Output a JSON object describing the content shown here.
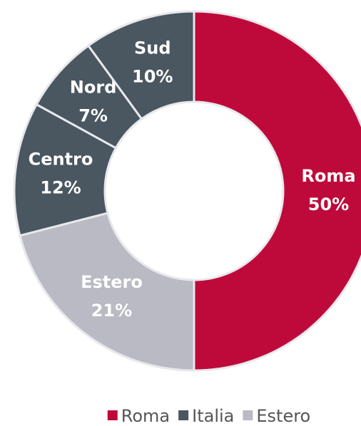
{
  "chart_data": {
    "type": "donut",
    "categories": [
      "Roma",
      "Estero",
      "Centro",
      "Nord",
      "Sud"
    ],
    "values": [
      50,
      21,
      12,
      7,
      10
    ],
    "value_labels": [
      "50%",
      "21%",
      "12%",
      "7%",
      "10%"
    ],
    "colors": [
      "#be0a3a",
      "#b9bac3",
      "#4a5660",
      "#4a5660",
      "#4a5660"
    ],
    "legend": [
      {
        "name": "Roma",
        "color": "#be0a3a"
      },
      {
        "name": "Italia",
        "color": "#4a5660"
      },
      {
        "name": "Estero",
        "color": "#b9bac3"
      }
    ]
  }
}
